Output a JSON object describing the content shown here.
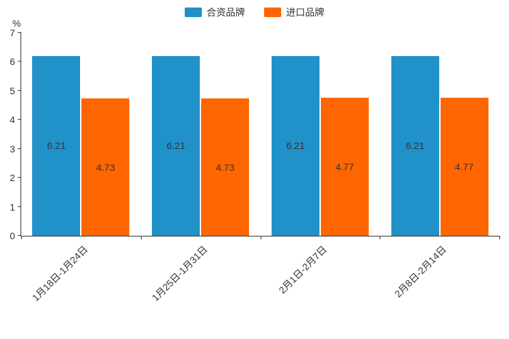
{
  "chart_data": {
    "type": "bar",
    "title": "",
    "categories": [
      "1月18日-1月24日",
      "1月25日-1月31日",
      "2月1日-2月7日",
      "2月8日-2月14日"
    ],
    "series": [
      {
        "name": "合资品牌",
        "color": "#2191c9",
        "values": [
          6.21,
          6.21,
          6.21,
          6.21
        ]
      },
      {
        "name": "进口品牌",
        "color": "#ff6600",
        "values": [
          4.73,
          4.73,
          4.77,
          4.77
        ]
      }
    ],
    "xlabel": "",
    "ylabel": "%",
    "ylim": [
      0,
      7
    ],
    "ytick_step": 1,
    "grid": false,
    "legend_position": "top",
    "bar_label_position": "inside-center"
  },
  "colors": {
    "axis": "#333333",
    "text": "#333333",
    "background": "#ffffff"
  }
}
